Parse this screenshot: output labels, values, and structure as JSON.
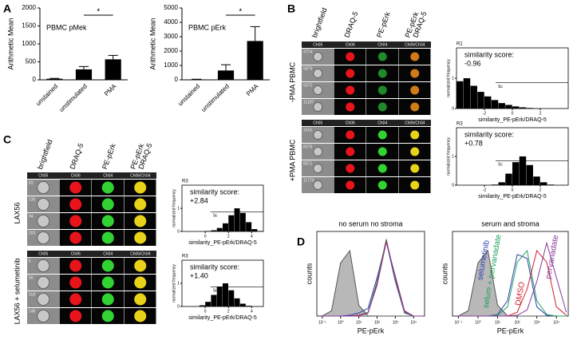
{
  "panel_labels": [
    "A",
    "B",
    "C",
    "D"
  ],
  "image_panels": [
    {
      "headers": [
        [
          "brightfield"
        ],
        [
          "DRAQ-5"
        ],
        [
          "PE-pErk"
        ],
        [
          "PE-pErk",
          "DRAQ-5"
        ]
      ],
      "groups": [
        {
          "label": "-PMA PBMC",
          "channels": [
            "Ch05",
            "Ch06",
            "Ch04",
            "Ch06/Ch04"
          ],
          "cells": [
            "3774",
            "5879",
            "9372",
            "11187"
          ]
        },
        {
          "label": "+PMA PBMC",
          "channels": [
            "Ch05",
            "Ch06",
            "Ch04",
            "Ch06/Ch04"
          ],
          "cells": [
            "1415",
            "8276",
            "8571",
            "11774"
          ]
        }
      ]
    },
    {
      "headers": [
        [
          "brightfield"
        ],
        [
          "DRAQ-5"
        ],
        [
          "PE-pErk"
        ],
        [
          "PE-pErk",
          "DRAQ-5"
        ]
      ],
      "groups": [
        {
          "label": "LAX56",
          "channels": [
            "Ch05",
            "Ch06",
            "Ch04",
            "Ch06/Ch04"
          ],
          "cells": [
            "83",
            "130",
            "94",
            "203"
          ]
        },
        {
          "label": "LAX56 + selumetinib",
          "channels": [
            "Ch05",
            "Ch06",
            "Ch04",
            "Ch06/Ch04"
          ],
          "cells": [
            "5",
            "56",
            "118",
            "148"
          ]
        }
      ]
    }
  ],
  "chart_data": [
    {
      "type": "bar",
      "title": "PBMC pMek",
      "y_label": "Arithmetic Mean",
      "annotation": "*",
      "categories": [
        "unstained",
        "unstimulated",
        "PMA"
      ],
      "values": [
        30,
        290,
        570
      ],
      "errors": [
        10,
        80,
        110
      ],
      "ylim": [
        0,
        2000
      ],
      "yticks": [
        0,
        500,
        1000,
        1500,
        2000
      ],
      "color": "#000000"
    },
    {
      "type": "bar",
      "title": "PBMC pErk",
      "y_label": "Arithmetic Mean",
      "annotation": "*",
      "categories": [
        "unstained",
        "unstimulated",
        "PMA"
      ],
      "values": [
        30,
        650,
        2700
      ],
      "errors": [
        10,
        400,
        1000
      ],
      "ylim": [
        0,
        5000
      ],
      "yticks": [
        0,
        1000,
        2000,
        3000,
        4000,
        5000
      ],
      "color": "#000000"
    },
    {
      "type": "histogram",
      "gate": "R1",
      "annotation": [
        "similarity score:",
        "-0.96"
      ],
      "region_label": "Sc",
      "x_label": "similarity_PE-pErk/DRAQ-5",
      "y_label": "normalized frequency",
      "bins": [
        -4,
        -3.5,
        -3,
        -2.5,
        -2,
        -1.5,
        -1,
        -0.5,
        0,
        0.5,
        1,
        1.5,
        2,
        2.5,
        3,
        3.5,
        4
      ],
      "values": [
        0.9,
        1,
        0.75,
        0.55,
        0.4,
        0.28,
        0.18,
        0.12,
        0.07,
        0.04,
        0.02,
        0.01,
        0,
        0,
        0,
        0
      ],
      "xlim": [
        -4,
        4
      ],
      "xticks": [
        -2,
        0,
        2
      ],
      "ylim": [
        0,
        2
      ],
      "yticks": [
        0,
        1
      ],
      "color": "#000000"
    },
    {
      "type": "histogram",
      "gate": "R3",
      "annotation": [
        "similarity score:",
        "+0.78"
      ],
      "region_label": "Sc",
      "x_label": "similarity_PE-pErk/DRAQ-5",
      "y_label": "normalized frequency",
      "bins": [
        -4,
        -3.5,
        -3,
        -2.5,
        -2,
        -1.5,
        -1,
        -0.5,
        0,
        0.5,
        1,
        1.5,
        2,
        2.5,
        3,
        3.5,
        4
      ],
      "values": [
        0,
        0,
        0,
        0,
        0,
        0.02,
        0.1,
        0.4,
        0.8,
        1,
        0.7,
        0.3,
        0.1,
        0.02,
        0,
        0
      ],
      "xlim": [
        -4,
        4
      ],
      "xticks": [
        -2,
        0,
        2
      ],
      "ylim": [
        0,
        2
      ],
      "yticks": [
        0,
        1
      ],
      "color": "#000000"
    },
    {
      "type": "histogram",
      "gate": "R3",
      "annotation": [
        "similarity score:",
        "+2.84"
      ],
      "region_label": "Sc",
      "x_label": "similarity_PE-pErk/DRAQ-5",
      "y_label": "normalized frequency",
      "bins": [
        -2,
        -1.5,
        -1,
        -0.5,
        0,
        0.5,
        1,
        1.5,
        2,
        2.5,
        3,
        3.5,
        4,
        4.5,
        5
      ],
      "values": [
        0,
        0,
        0,
        0,
        0.02,
        0.05,
        0.15,
        0.35,
        0.7,
        1,
        0.8,
        0.4,
        0.1,
        0.02
      ],
      "xlim": [
        -2,
        5
      ],
      "xticks": [
        0,
        2,
        4
      ],
      "ylim": [
        0,
        2
      ],
      "yticks": [
        0,
        1
      ],
      "color": "#000000"
    },
    {
      "type": "histogram",
      "gate": "R3",
      "annotation": [
        "similarity score:",
        "+1.40"
      ],
      "region_label": "Sc",
      "x_label": "similarity_PE-pErk/DRAQ-5",
      "y_label": "normalized frequency",
      "bins": [
        -2,
        -1.5,
        -1,
        -0.5,
        0,
        0.5,
        1,
        1.5,
        2,
        2.5,
        3,
        3.5,
        4,
        4.5,
        5
      ],
      "values": [
        0,
        0,
        0,
        0.05,
        0.2,
        0.5,
        0.85,
        1,
        0.7,
        0.35,
        0.12,
        0.03,
        0,
        0
      ],
      "xlim": [
        -2,
        5
      ],
      "xticks": [
        0,
        2,
        4
      ],
      "ylim": [
        0,
        2
      ],
      "yticks": [
        0,
        1
      ],
      "color": "#000000"
    },
    {
      "type": "line",
      "title": "no serum no stroma",
      "x_label": "PE-pErk",
      "y_label": "counts",
      "x_log": true,
      "x": [
        0.1,
        0.32,
        1,
        3.2,
        10,
        32,
        100,
        320,
        1000,
        3200,
        10000,
        32000
      ],
      "xlim": [
        0.05,
        40000
      ],
      "xticks": [
        {
          "value": 0.1,
          "label": "10⁻¹"
        },
        {
          "value": 1,
          "label": "10⁰"
        },
        {
          "value": 10,
          "label": "10¹"
        },
        {
          "value": 100,
          "label": "10²"
        },
        {
          "value": 1000,
          "label": "10³"
        },
        {
          "value": 10000,
          "label": "10⁴"
        }
      ],
      "ylim": [
        0,
        1.1
      ],
      "series": [
        {
          "color": "#555555",
          "filled": true,
          "values": [
            0.001,
            0.07,
            0.69,
            0.85,
            0.14,
            0.003,
            0,
            0,
            0,
            0,
            0,
            0
          ]
        },
        {
          "color": "#2b3fb0",
          "values": [
            0,
            0,
            0,
            0.01,
            0.04,
            0.1,
            0.5,
            0.97,
            0.45,
            0.04,
            0,
            0
          ]
        },
        {
          "color": "#1fa05a",
          "values": [
            0,
            0,
            0,
            0,
            0.01,
            0.05,
            0.45,
            1,
            0.48,
            0.05,
            0,
            0
          ]
        },
        {
          "color": "#d0202a",
          "values": [
            0,
            0,
            0,
            0,
            0.01,
            0.04,
            0.42,
            0.98,
            0.5,
            0.06,
            0,
            0
          ]
        },
        {
          "color": "#8a3a9a",
          "values": [
            0,
            0,
            0,
            0,
            0,
            0.04,
            0.4,
            0.96,
            0.52,
            0.07,
            0,
            0
          ]
        }
      ]
    },
    {
      "type": "line",
      "title": "serum and stroma",
      "x_label": "PE-pErk",
      "y_label": "counts",
      "x_log": true,
      "x": [
        0.1,
        0.32,
        1,
        3.2,
        10,
        32,
        100,
        320,
        1000,
        3200,
        10000,
        32000
      ],
      "xlim": [
        0.05,
        40000
      ],
      "xticks": [
        {
          "value": 0.1,
          "label": "10⁻¹"
        },
        {
          "value": 1,
          "label": "10⁰"
        },
        {
          "value": 10,
          "label": "10¹"
        },
        {
          "value": 100,
          "label": "10²"
        },
        {
          "value": 1000,
          "label": "10³"
        },
        {
          "value": 10000,
          "label": "10⁴"
        }
      ],
      "ylim": [
        0,
        1.1
      ],
      "series": [
        {
          "color": "#555555",
          "filled": true,
          "values": [
            0.001,
            0.07,
            0.69,
            0.85,
            0.14,
            0.003,
            0,
            0,
            0,
            0,
            0,
            0
          ]
        },
        {
          "name": "selumetinib",
          "color": "#2b3fb0",
          "values": [
            0,
            0,
            0,
            0,
            0.02,
            0.2,
            0.8,
            0.75,
            0.12,
            0.01,
            0,
            0
          ]
        },
        {
          "name": "selum + pervanadate",
          "color": "#1fa05a",
          "values": [
            0,
            0,
            0,
            0,
            0.01,
            0.12,
            0.7,
            0.85,
            0.2,
            0.02,
            0,
            0
          ]
        },
        {
          "name": "DMSO",
          "color": "#d0202a",
          "values": [
            0,
            0,
            0,
            0,
            0,
            0,
            0.05,
            0.35,
            0.85,
            0.7,
            0.12,
            0.01
          ]
        },
        {
          "name": "pervanadate",
          "color": "#8a3a9a",
          "values": [
            0,
            0,
            0,
            0,
            0,
            0,
            0.01,
            0.08,
            0.45,
            0.95,
            0.5,
            0.05
          ]
        }
      ]
    }
  ]
}
